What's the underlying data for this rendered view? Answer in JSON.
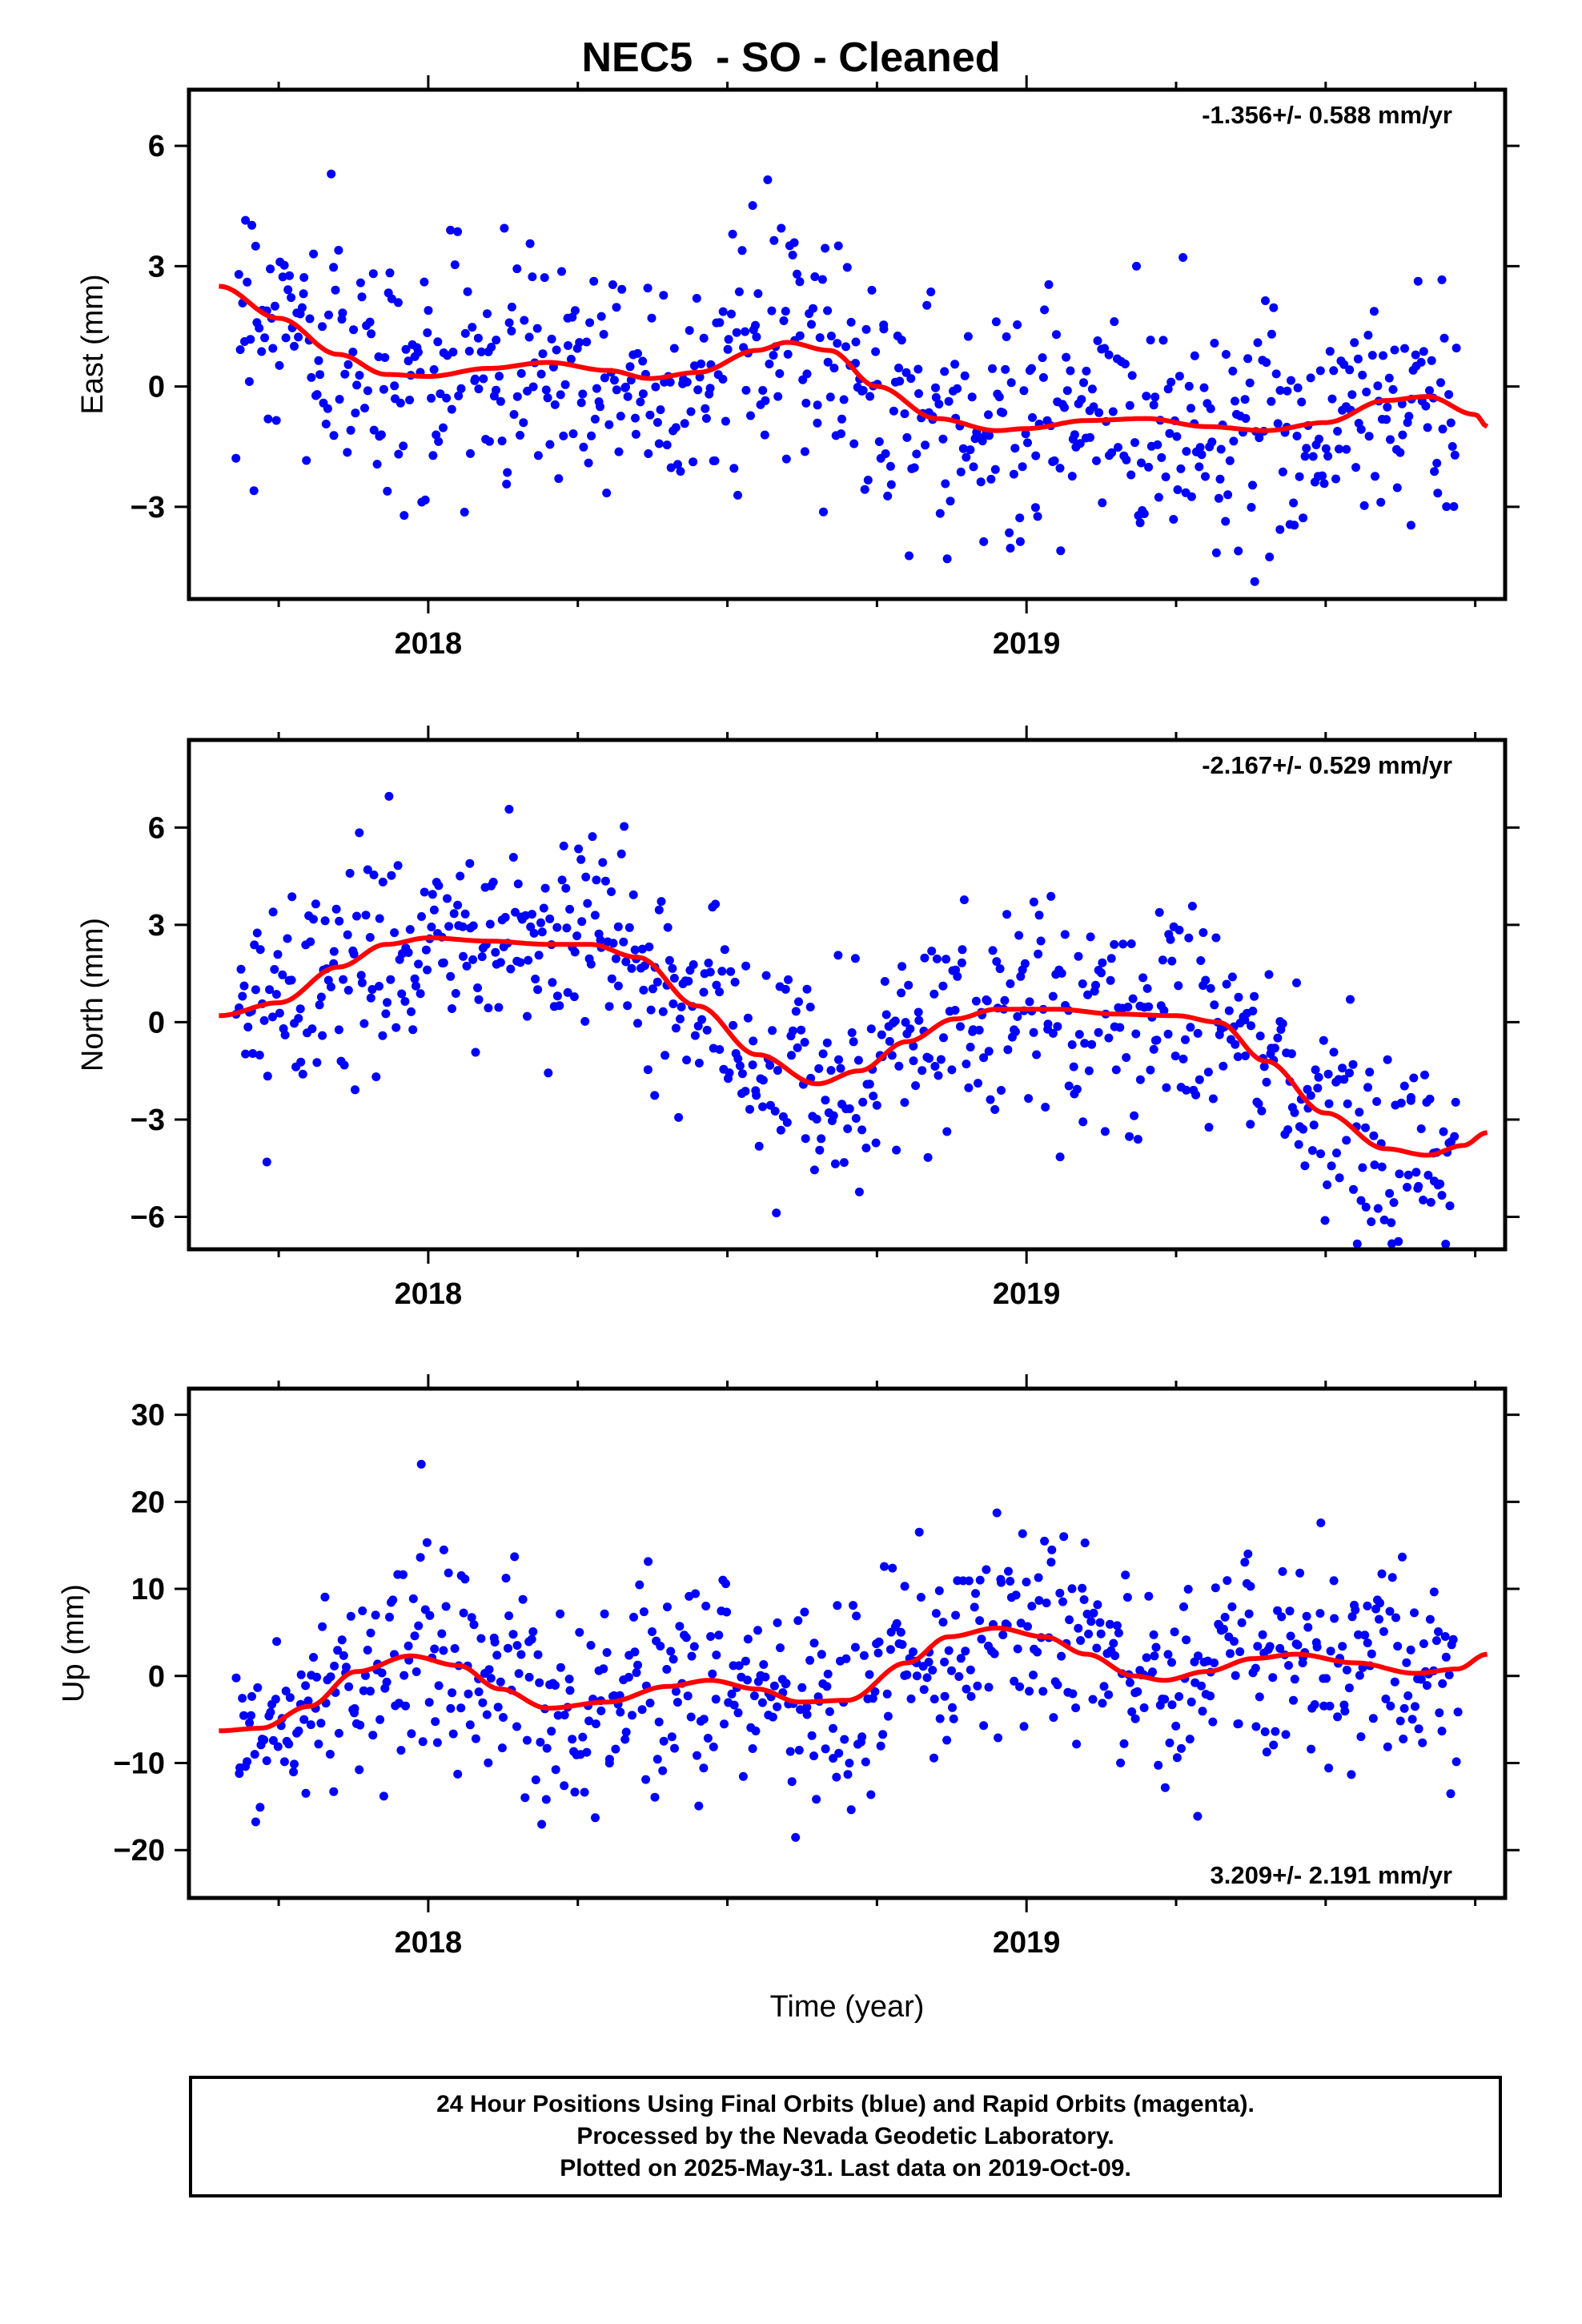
{
  "title": "NEC5  - SO - Cleaned",
  "xlabel": "Time (year)",
  "footer": [
    "24 Hour Positions Using Final Orbits (blue) and Rapid Orbits (magenta).",
    "Processed by the Nevada Geodetic Laboratory.",
    "Plotted on 2025-May-31. Last data on 2019-Oct-09."
  ],
  "colors": {
    "points": "#0000ff",
    "fit": "#ff0000",
    "axes": "#000000"
  },
  "chart_data": [
    {
      "type": "scatter",
      "ylabel": "East (mm)",
      "rate": "-1.356+/- 0.588 mm/yr",
      "rate_position": "top-right",
      "xlim": [
        2017.6,
        2019.8
      ],
      "ylim": [
        -5.3,
        7.4
      ],
      "xticks": [
        2018,
        2019
      ],
      "yticks": [
        -3,
        0,
        3,
        6
      ],
      "grid": false,
      "n_points": 700,
      "noise_sd": 1.5,
      "fit": {
        "name": "",
        "x": [
          2017.65,
          2017.75,
          2017.85,
          2017.93,
          2018.0,
          2018.1,
          2018.2,
          2018.3,
          2018.37,
          2018.45,
          2018.55,
          2018.6,
          2018.67,
          2018.75,
          2018.85,
          2018.95,
          2019.0,
          2019.1,
          2019.2,
          2019.3,
          2019.4,
          2019.5,
          2019.6,
          2019.67,
          2019.75,
          2019.77
        ],
        "y": [
          2.5,
          1.7,
          0.8,
          0.3,
          0.25,
          0.45,
          0.6,
          0.4,
          0.2,
          0.35,
          0.9,
          1.1,
          0.9,
          0.0,
          -0.8,
          -1.1,
          -1.05,
          -0.85,
          -0.8,
          -1.0,
          -1.1,
          -0.9,
          -0.35,
          -0.25,
          -0.7,
          -1.0
        ]
      }
    },
    {
      "type": "scatter",
      "ylabel": "North (mm)",
      "rate": "-2.167+/- 0.529 mm/yr",
      "rate_position": "top-right",
      "xlim": [
        2017.6,
        2019.8
      ],
      "ylim": [
        -7.0,
        8.7
      ],
      "xticks": [
        2018,
        2019
      ],
      "yticks": [
        -6,
        -3,
        0,
        3,
        6
      ],
      "grid": false,
      "n_points": 700,
      "noise_sd": 1.6,
      "fit": {
        "name": "",
        "x": [
          2017.65,
          2017.75,
          2017.85,
          2017.93,
          2018.0,
          2018.1,
          2018.2,
          2018.27,
          2018.35,
          2018.45,
          2018.55,
          2018.65,
          2018.72,
          2018.8,
          2018.88,
          2018.95,
          2019.05,
          2019.15,
          2019.25,
          2019.32,
          2019.4,
          2019.5,
          2019.6,
          2019.67,
          2019.73,
          2019.77
        ],
        "y": [
          0.2,
          0.6,
          1.7,
          2.4,
          2.6,
          2.5,
          2.4,
          2.4,
          2.0,
          0.5,
          -1.0,
          -1.9,
          -1.5,
          -0.6,
          0.1,
          0.4,
          0.4,
          0.25,
          0.2,
          0.0,
          -1.2,
          -2.8,
          -3.9,
          -4.1,
          -3.8,
          -3.4
        ]
      }
    },
    {
      "type": "scatter",
      "ylabel": "Up (mm)",
      "rate": "3.209+/- 2.191 mm/yr",
      "rate_position": "bottom-right",
      "xlim": [
        2017.6,
        2019.8
      ],
      "ylim": [
        -25.5,
        33.0
      ],
      "xticks": [
        2018,
        2019
      ],
      "yticks": [
        -20,
        -10,
        0,
        10,
        20,
        30
      ],
      "grid": false,
      "n_points": 700,
      "noise_sd": 6.0,
      "fit": {
        "name": "",
        "x": [
          2017.65,
          2017.72,
          2017.8,
          2017.88,
          2017.97,
          2018.05,
          2018.12,
          2018.2,
          2018.3,
          2018.4,
          2018.47,
          2018.55,
          2018.62,
          2018.7,
          2018.8,
          2018.87,
          2018.95,
          2019.03,
          2019.1,
          2019.18,
          2019.23,
          2019.3,
          2019.38,
          2019.45,
          2019.55,
          2019.65,
          2019.72,
          2019.77
        ],
        "y": [
          -6.3,
          -6.0,
          -3.5,
          0.5,
          2.3,
          1.2,
          -1.5,
          -3.7,
          -3.0,
          -1.2,
          -0.5,
          -1.5,
          -3.0,
          -2.8,
          1.5,
          4.5,
          5.5,
          4.5,
          2.5,
          0.0,
          -0.5,
          0.5,
          2.0,
          2.5,
          1.5,
          0.3,
          0.8,
          2.5
        ]
      }
    }
  ]
}
